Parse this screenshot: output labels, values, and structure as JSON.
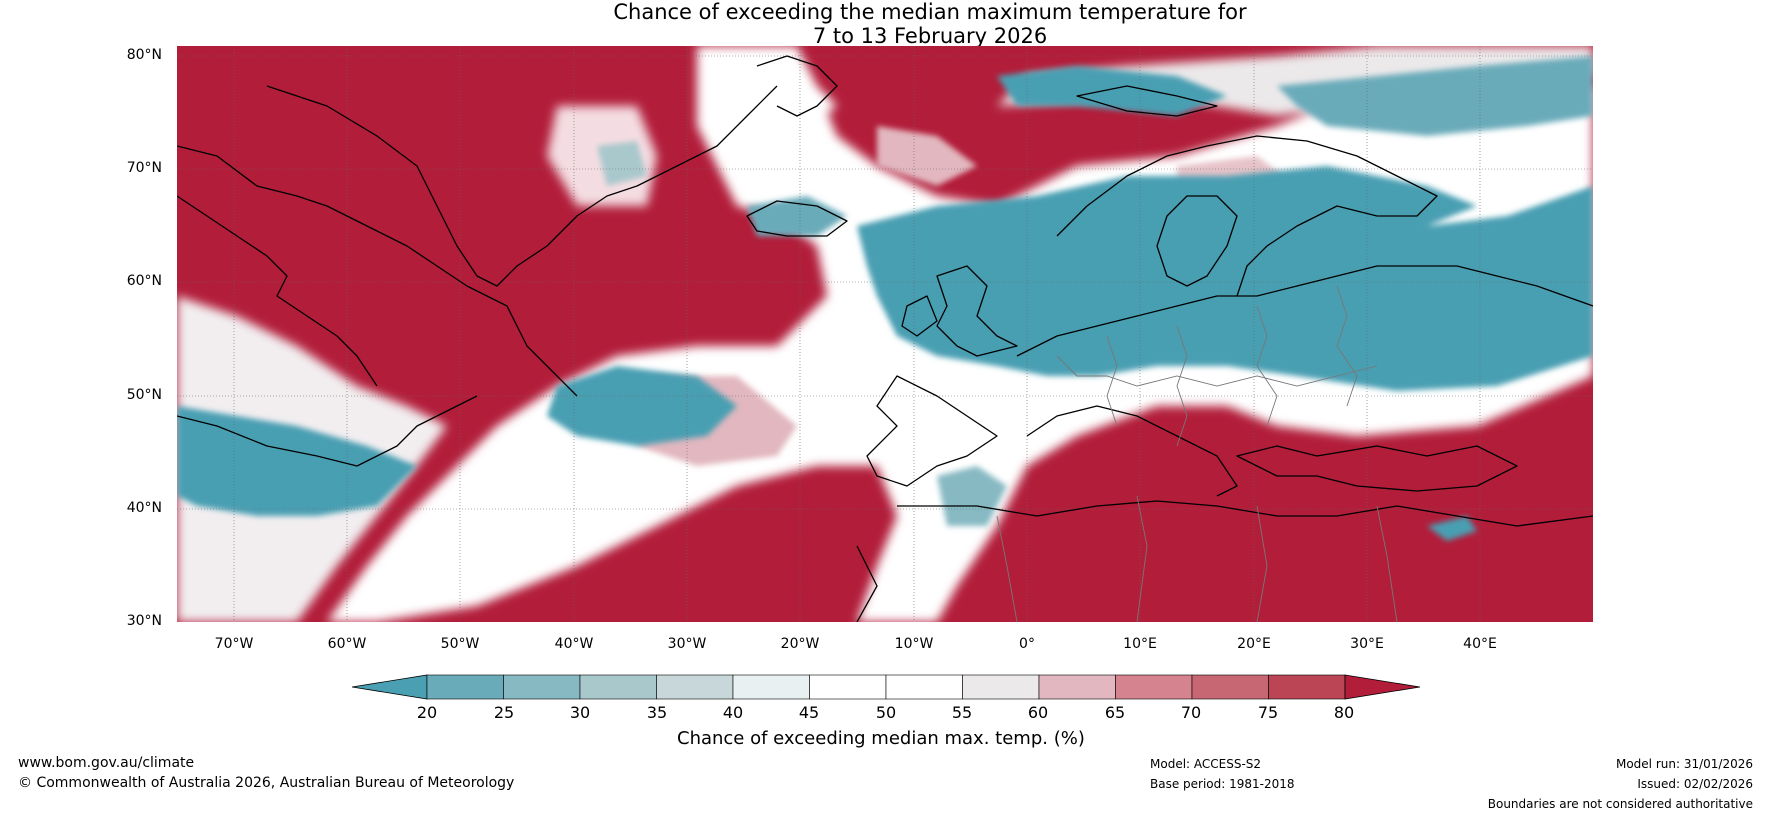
{
  "title": {
    "line1": "Chance of exceeding the median maximum temperature for",
    "line2": "7 to 13 February 2026"
  },
  "map": {
    "lat_ticks": [
      "80°N",
      "70°N",
      "60°N",
      "50°N",
      "40°N",
      "30°N"
    ],
    "lon_ticks": [
      "70°W",
      "60°W",
      "50°W",
      "40°W",
      "30°W",
      "20°W",
      "10°W",
      "0°",
      "10°E",
      "20°E",
      "30°E",
      "40°E"
    ]
  },
  "colorbar": {
    "ticks": [
      "20",
      "25",
      "30",
      "35",
      "40",
      "45",
      "50",
      "55",
      "60",
      "65",
      "70",
      "75",
      "80"
    ],
    "colors": [
      "#4a9fb2",
      "#6aabba",
      "#87b9c3",
      "#a9c8cc",
      "#c8d8da",
      "#e9f0f1",
      "#ffffff",
      "#ffffff",
      "#ebe9ea",
      "#e2b7bf",
      "#d5838f",
      "#c86774",
      "#bb4455",
      "#b21d3a"
    ],
    "label": "Chance of exceeding median max. temp. (%)"
  },
  "footer": {
    "url": "www.bom.gov.au/climate",
    "copyright": "© Commonwealth of Australia 2026, Australian Bureau of Meteorology",
    "model": "Model: ACCESS-S2",
    "base_period": "Base period: 1981-2018",
    "model_run": "Model run: 31/01/2026",
    "issued": "Issued: 02/02/2026",
    "disclaimer": "Boundaries are not considered authoritative"
  }
}
